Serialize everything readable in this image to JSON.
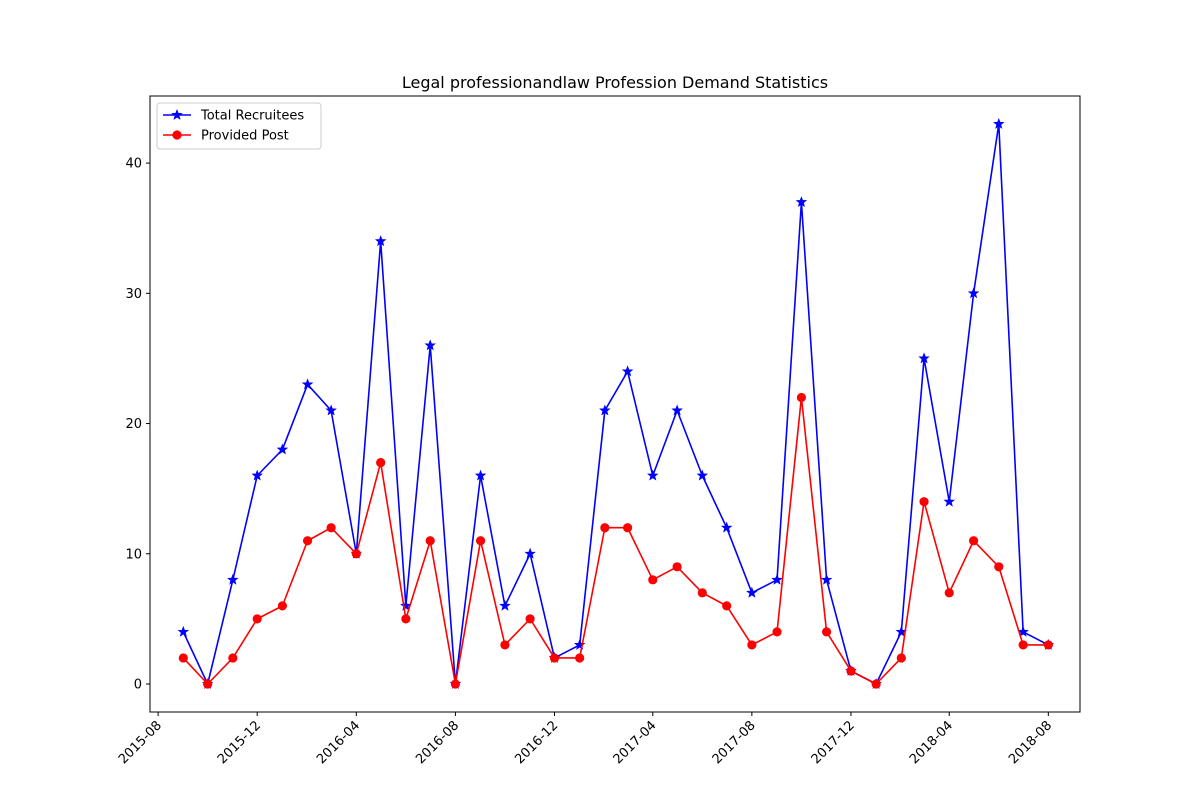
{
  "chart_data": {
    "type": "line",
    "title": "Legal professionandlaw Profession Demand Statistics",
    "xlabel": "",
    "ylabel": "",
    "x": [
      "2015-09",
      "2015-10",
      "2015-11",
      "2015-12",
      "2016-01",
      "2016-02",
      "2016-03",
      "2016-04",
      "2016-05",
      "2016-06",
      "2016-07",
      "2016-08",
      "2016-09",
      "2016-10",
      "2016-11",
      "2016-12",
      "2017-01",
      "2017-02",
      "2017-03",
      "2017-04",
      "2017-05",
      "2017-06",
      "2017-07",
      "2017-08",
      "2017-09",
      "2017-10",
      "2017-11",
      "2017-12",
      "2018-01",
      "2018-02",
      "2018-03",
      "2018-04",
      "2018-05",
      "2018-06",
      "2018-07",
      "2018-08"
    ],
    "x_tick_labels": [
      "2015-08",
      "2015-12",
      "2016-04",
      "2016-08",
      "2016-12",
      "2017-04",
      "2017-08",
      "2017-12",
      "2018-04",
      "2018-08"
    ],
    "y_ticks": [
      0,
      10,
      20,
      30,
      40
    ],
    "ylim": [
      -2.15,
      45.15
    ],
    "xlim": [
      "2015-07-22",
      "2018-09-09"
    ],
    "grid": false,
    "legend_position": "top-left",
    "series": [
      {
        "name": "Total Recruitees",
        "color": "#0000ff",
        "marker": "star",
        "values": [
          4,
          0,
          8,
          16,
          18,
          23,
          21,
          10,
          34,
          6,
          26,
          0,
          16,
          6,
          10,
          2,
          3,
          21,
          24,
          16,
          21,
          16,
          12,
          7,
          8,
          37,
          8,
          1,
          0,
          4,
          25,
          14,
          30,
          43,
          4,
          3
        ]
      },
      {
        "name": "Provided Post",
        "color": "#ff0000",
        "marker": "circle",
        "values": [
          2,
          0,
          2,
          5,
          6,
          11,
          12,
          10,
          17,
          5,
          11,
          0,
          11,
          3,
          5,
          2,
          2,
          12,
          12,
          8,
          9,
          7,
          6,
          3,
          4,
          22,
          4,
          1,
          0,
          2,
          14,
          7,
          11,
          9,
          3,
          3
        ]
      }
    ]
  }
}
